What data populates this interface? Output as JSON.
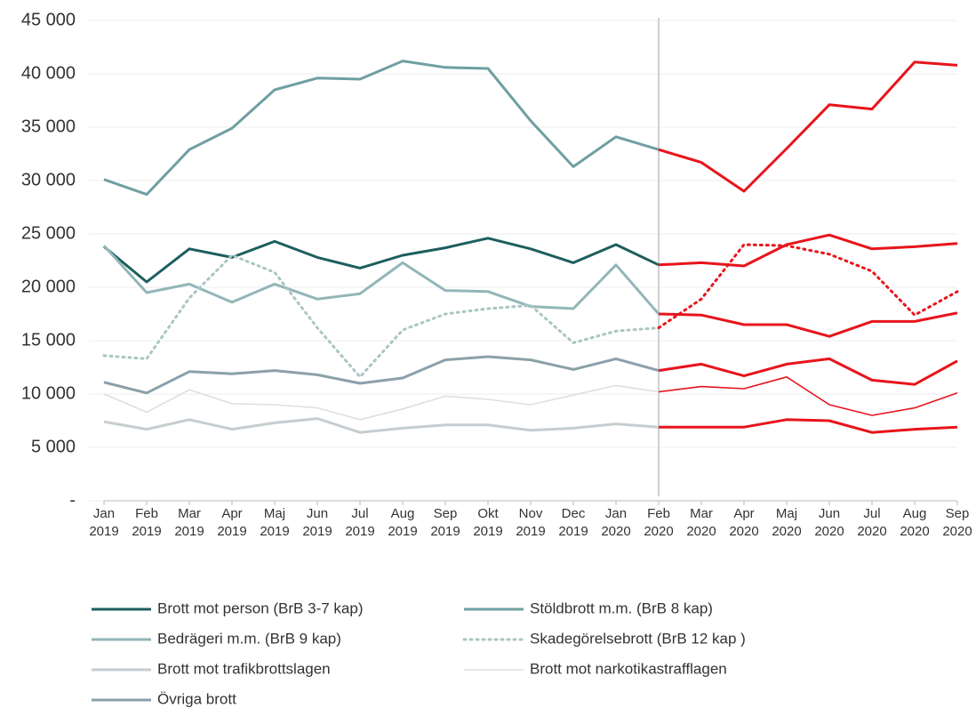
{
  "chart_data": {
    "type": "line",
    "categories": [
      "Jan 2019",
      "Feb 2019",
      "Mar 2019",
      "Apr 2019",
      "Maj 2019",
      "Jun 2019",
      "Jul 2019",
      "Aug 2019",
      "Sep 2019",
      "Okt 2019",
      "Nov 2019",
      "Dec 2019",
      "Jan 2020",
      "Feb 2020",
      "Mar 2020",
      "Apr 2020",
      "Maj 2020",
      "Jun 2020",
      "Jul 2020",
      "Aug 2020",
      "Sep 2020"
    ],
    "ylim": [
      0,
      45000
    ],
    "yticks": [
      {
        "value": 0,
        "label": "-"
      },
      {
        "value": 5000,
        "label": "5 000"
      },
      {
        "value": 10000,
        "label": "10 000"
      },
      {
        "value": 15000,
        "label": "15 000"
      },
      {
        "value": 20000,
        "label": "20 000"
      },
      {
        "value": 25000,
        "label": "25 000"
      },
      {
        "value": 30000,
        "label": "30 000"
      },
      {
        "value": 35000,
        "label": "35 000"
      },
      {
        "value": 40000,
        "label": "40 000"
      },
      {
        "value": 45000,
        "label": "45 000"
      }
    ],
    "grid": true,
    "marker_line": {
      "x": "Feb 2020",
      "color": "#d0d0d0"
    },
    "after_marker_color": "#e8141b",
    "series": [
      {
        "name": "Brott mot person (BrB 3-7 kap)",
        "color": "#1d5e5e",
        "line_width": 3,
        "style": "solid",
        "values": [
          23800,
          20500,
          23600,
          22800,
          24300,
          22800,
          21800,
          23000,
          23700,
          24600,
          23600,
          22300,
          24000,
          22100,
          22300,
          22000,
          24000,
          24900,
          23600,
          23800,
          24100
        ]
      },
      {
        "name": "Stöldbrott m.m. (BrB 8 kap)",
        "color": "#6f9fa1",
        "line_width": 3,
        "style": "solid",
        "values": [
          30100,
          28700,
          32900,
          34900,
          38500,
          39600,
          39500,
          41200,
          40600,
          40500,
          35600,
          31300,
          34100,
          32900,
          31700,
          29000,
          33000,
          37100,
          36700,
          41100,
          40800
        ]
      },
      {
        "name": "Bedrägeri m.m. (BrB 9 kap)",
        "color": "#92b6b8",
        "line_width": 3,
        "style": "solid",
        "values": [
          23900,
          19500,
          20300,
          18600,
          20300,
          18900,
          19400,
          22300,
          19700,
          19600,
          18200,
          18000,
          22100,
          17500,
          17400,
          16500,
          16500,
          15400,
          16800,
          16800,
          17600
        ]
      },
      {
        "name": "Skadegörelsebrott (BrB 12 kap )",
        "color": "#a9c6c2",
        "line_width": 3,
        "style": "dotted",
        "values": [
          13600,
          13300,
          19000,
          23000,
          21400,
          16200,
          11600,
          16000,
          17500,
          18000,
          18300,
          14800,
          15900,
          16200,
          18900,
          24000,
          23900,
          23100,
          21500,
          17400,
          19600
        ]
      },
      {
        "name": "Brott mot trafikbrottslagen",
        "color": "#c6cdd1",
        "line_width": 3,
        "style": "solid",
        "values": [
          7400,
          6700,
          7600,
          6700,
          7300,
          7700,
          6400,
          6800,
          7100,
          7100,
          6600,
          6800,
          7200,
          6900,
          6900,
          6900,
          7600,
          7500,
          6400,
          6700,
          6900
        ]
      },
      {
        "name": "Brott mot narkotikastrafflagen",
        "color": "#dce0e2",
        "line_width": 1.6,
        "style": "solid",
        "values": [
          10000,
          8300,
          10400,
          9100,
          9000,
          8700,
          7600,
          8600,
          9800,
          9500,
          9000,
          9900,
          10800,
          10200,
          10700,
          10500,
          11600,
          9000,
          8000,
          8700,
          10100
        ]
      },
      {
        "name": "Övriga brott",
        "color": "#8ba0a9",
        "line_width": 3,
        "style": "solid",
        "values": [
          11100,
          10100,
          12100,
          11900,
          12200,
          11800,
          11000,
          11500,
          13200,
          13500,
          13200,
          12300,
          13300,
          12200,
          12800,
          11700,
          12800,
          13300,
          11300,
          10900,
          13100
        ]
      }
    ]
  }
}
